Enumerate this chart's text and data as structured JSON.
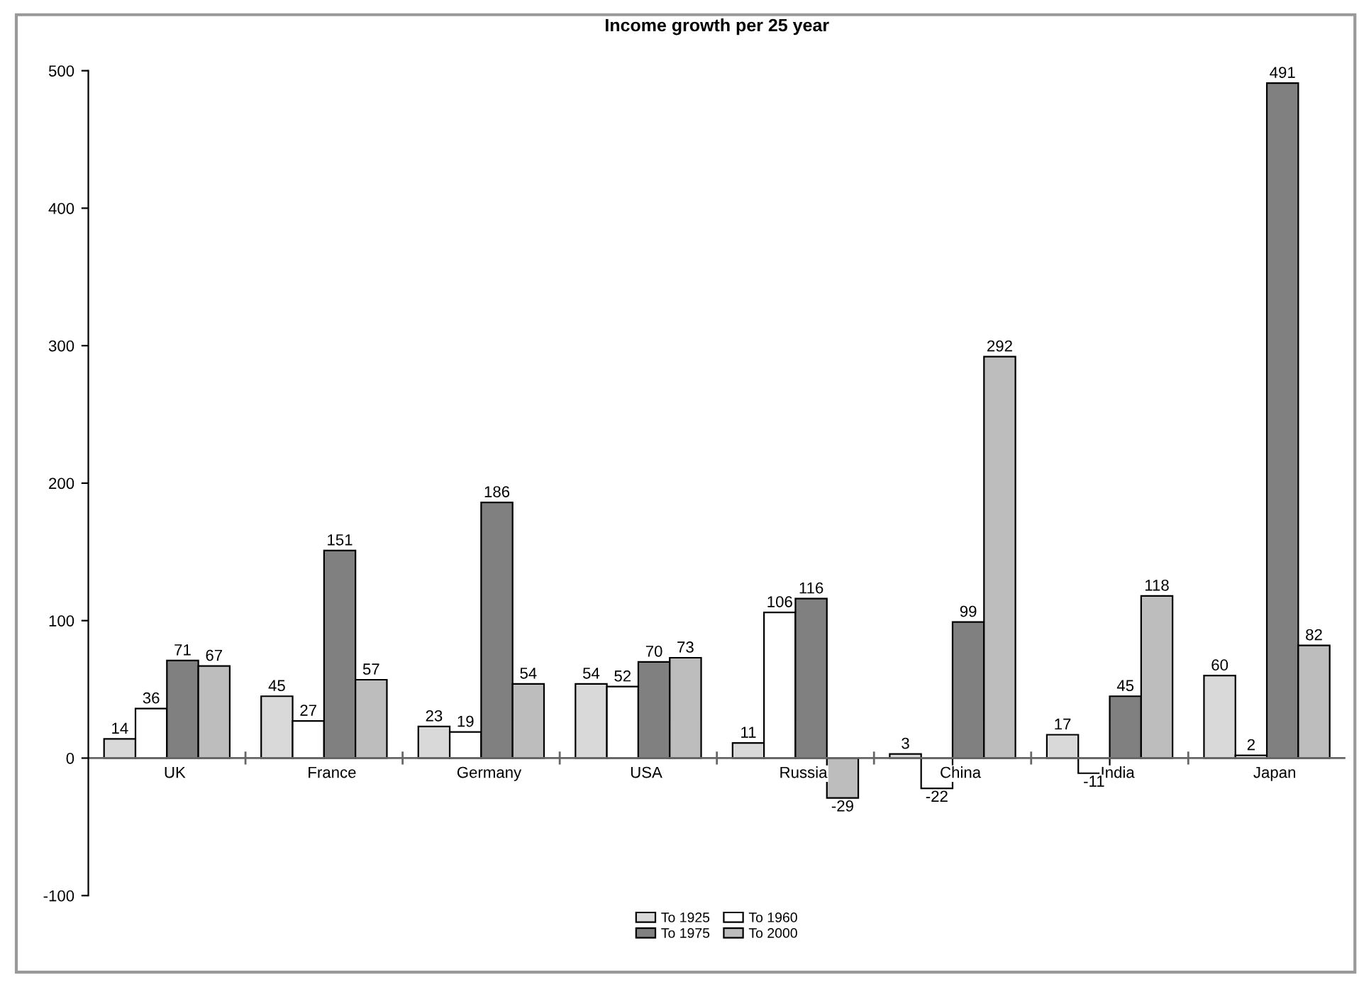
{
  "chart_data": {
    "type": "bar",
    "title": "Income growth per 25 year",
    "categories": [
      "UK",
      "France",
      "Germany",
      "USA",
      "Russia",
      "China",
      "India",
      "Japan"
    ],
    "series": [
      {
        "name": "To 1925",
        "color": "#d9d9d9",
        "values": [
          14,
          45,
          23,
          54,
          11,
          3,
          17,
          60
        ]
      },
      {
        "name": "To 1960",
        "color": "#ffffff",
        "values": [
          36,
          27,
          19,
          52,
          106,
          -22,
          -11,
          2
        ]
      },
      {
        "name": "To 1975",
        "color": "#808080",
        "values": [
          71,
          151,
          186,
          70,
          116,
          99,
          45,
          491
        ]
      },
      {
        "name": "To 2000",
        "color": "#bdbdbd",
        "values": [
          67,
          57,
          54,
          73,
          -29,
          292,
          118,
          82
        ]
      }
    ],
    "ylim": [
      -100,
      500
    ],
    "yticks": [
      -100,
      0,
      100,
      200,
      300,
      400,
      500
    ],
    "data_labels": true,
    "legend": "bottom",
    "grid": false
  }
}
